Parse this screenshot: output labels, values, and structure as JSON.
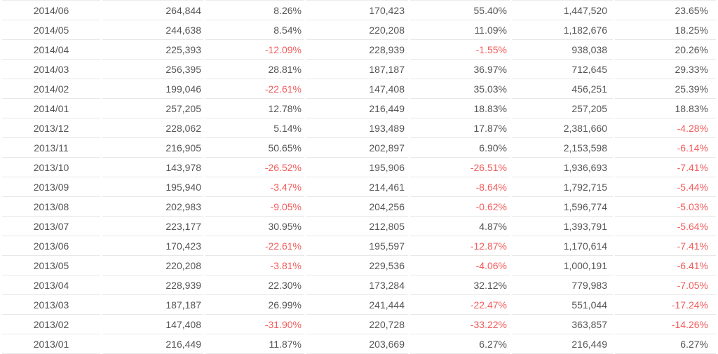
{
  "colors": {
    "text": "#555555",
    "negative": "#f25c5c",
    "row_border": "#e8e8e8",
    "background": "#ffffff"
  },
  "table": {
    "headers_visible": false,
    "rows": [
      [
        "2014/06",
        "264,844",
        "8.26%",
        "170,423",
        "55.40%",
        "1,447,520",
        "23.65%"
      ],
      [
        "2014/05",
        "244,638",
        "8.54%",
        "220,208",
        "11.09%",
        "1,182,676",
        "18.25%"
      ],
      [
        "2014/04",
        "225,393",
        "-12.09%",
        "228,939",
        "-1.55%",
        "938,038",
        "20.26%"
      ],
      [
        "2014/03",
        "256,395",
        "28.81%",
        "187,187",
        "36.97%",
        "712,645",
        "29.33%"
      ],
      [
        "2014/02",
        "199,046",
        "-22.61%",
        "147,408",
        "35.03%",
        "456,251",
        "25.39%"
      ],
      [
        "2014/01",
        "257,205",
        "12.78%",
        "216,449",
        "18.83%",
        "257,205",
        "18.83%"
      ],
      [
        "2013/12",
        "228,062",
        "5.14%",
        "193,489",
        "17.87%",
        "2,381,660",
        "-4.28%"
      ],
      [
        "2013/11",
        "216,905",
        "50.65%",
        "202,897",
        "6.90%",
        "2,153,598",
        "-6.14%"
      ],
      [
        "2013/10",
        "143,978",
        "-26.52%",
        "195,906",
        "-26.51%",
        "1,936,693",
        "-7.41%"
      ],
      [
        "2013/09",
        "195,940",
        "-3.47%",
        "214,461",
        "-8.64%",
        "1,792,715",
        "-5.44%"
      ],
      [
        "2013/08",
        "202,983",
        "-9.05%",
        "204,256",
        "-0.62%",
        "1,596,774",
        "-5.03%"
      ],
      [
        "2013/07",
        "223,177",
        "30.95%",
        "212,805",
        "4.87%",
        "1,393,791",
        "-5.64%"
      ],
      [
        "2013/06",
        "170,423",
        "-22.61%",
        "195,597",
        "-12.87%",
        "1,170,614",
        "-7.41%"
      ],
      [
        "2013/05",
        "220,208",
        "-3.81%",
        "229,536",
        "-4.06%",
        "1,000,191",
        "-6.41%"
      ],
      [
        "2013/04",
        "228,939",
        "22.30%",
        "173,284",
        "32.12%",
        "779,983",
        "-7.05%"
      ],
      [
        "2013/03",
        "187,187",
        "26.99%",
        "241,444",
        "-22.47%",
        "551,044",
        "-17.24%"
      ],
      [
        "2013/02",
        "147,408",
        "-31.90%",
        "220,728",
        "-33.22%",
        "363,857",
        "-14.26%"
      ],
      [
        "2013/01",
        "216,449",
        "11.87%",
        "203,669",
        "6.27%",
        "216,449",
        "6.27%"
      ]
    ]
  },
  "chart_data": {
    "type": "table",
    "title": "",
    "headers_visible": false,
    "column_count": 7,
    "column_roles": [
      "col1",
      "col2",
      "col3",
      "col4",
      "col5",
      "col6",
      "col7"
    ],
    "rows": [
      [
        "2014/06",
        "264,844",
        "8.26%",
        "170,423",
        "55.40%",
        "1,447,520",
        "23.65%"
      ],
      [
        "2014/05",
        "244,638",
        "8.54%",
        "220,208",
        "11.09%",
        "1,182,676",
        "18.25%"
      ],
      [
        "2014/04",
        "225,393",
        "-12.09%",
        "228,939",
        "-1.55%",
        "938,038",
        "20.26%"
      ],
      [
        "2014/03",
        "256,395",
        "28.81%",
        "187,187",
        "36.97%",
        "712,645",
        "29.33%"
      ],
      [
        "2014/02",
        "199,046",
        "-22.61%",
        "147,408",
        "35.03%",
        "456,251",
        "25.39%"
      ],
      [
        "2014/01",
        "257,205",
        "12.78%",
        "216,449",
        "18.83%",
        "257,205",
        "18.83%"
      ],
      [
        "2013/12",
        "228,062",
        "5.14%",
        "193,489",
        "17.87%",
        "2,381,660",
        "-4.28%"
      ],
      [
        "2013/11",
        "216,905",
        "50.65%",
        "202,897",
        "6.90%",
        "2,153,598",
        "-6.14%"
      ],
      [
        "2013/10",
        "143,978",
        "-26.52%",
        "195,906",
        "-26.51%",
        "1,936,693",
        "-7.41%"
      ],
      [
        "2013/09",
        "195,940",
        "-3.47%",
        "214,461",
        "-8.64%",
        "1,792,715",
        "-5.44%"
      ],
      [
        "2013/08",
        "202,983",
        "-9.05%",
        "204,256",
        "-0.62%",
        "1,596,774",
        "-5.03%"
      ],
      [
        "2013/07",
        "223,177",
        "30.95%",
        "212,805",
        "4.87%",
        "1,393,791",
        "-5.64%"
      ],
      [
        "2013/06",
        "170,423",
        "-22.61%",
        "195,597",
        "-12.87%",
        "1,170,614",
        "-7.41%"
      ],
      [
        "2013/05",
        "220,208",
        "-3.81%",
        "229,536",
        "-4.06%",
        "1,000,191",
        "-6.41%"
      ],
      [
        "2013/04",
        "228,939",
        "22.30%",
        "173,284",
        "32.12%",
        "779,983",
        "-7.05%"
      ],
      [
        "2013/03",
        "187,187",
        "26.99%",
        "241,444",
        "-22.47%",
        "551,044",
        "-17.24%"
      ],
      [
        "2013/02",
        "147,408",
        "-31.90%",
        "220,728",
        "-33.22%",
        "363,857",
        "-14.26%"
      ],
      [
        "2013/01",
        "216,449",
        "11.87%",
        "203,669",
        "6.27%",
        "216,449",
        "6.27%"
      ]
    ],
    "negative_values_color": "#f25c5c",
    "legend_position": "none",
    "grid": "horizontal-row-dividers-only"
  }
}
